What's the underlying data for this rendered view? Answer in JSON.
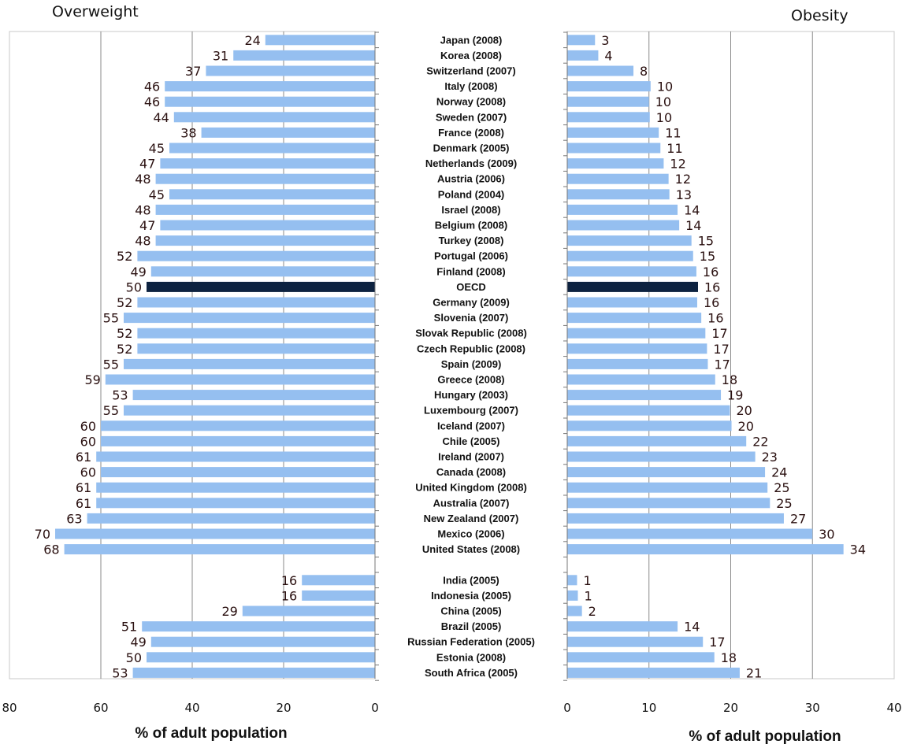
{
  "chart_data": [
    {
      "type": "bar",
      "orientation": "horizontal-reversed",
      "title": "Overweight",
      "xlabel": "% of adult population",
      "xlim": [
        80,
        0
      ],
      "xticks": [
        "80",
        "60",
        "40",
        "20",
        "0"
      ],
      "categories": [
        "Japan (2008)",
        "Korea (2008)",
        "Switzerland (2007)",
        "Italy (2008)",
        "Norway (2008)",
        "Sweden (2007)",
        "France (2008)",
        "Denmark (2005)",
        "Netherlands (2009)",
        "Austria (2006)",
        "Poland (2004)",
        "Israel (2008)",
        "Belgium (2008)",
        "Turkey (2008)",
        "Portugal (2006)",
        "Finland (2008)",
        "OECD",
        "Germany (2009)",
        "Slovenia (2007)",
        "Slovak Republic (2008)",
        "Czech Republic (2008)",
        "Spain (2009)",
        "Greece (2008)",
        "Hungary (2003)",
        "Luxembourg (2007)",
        "Iceland (2007)",
        "Chile (2005)",
        "Ireland (2007)",
        "Canada (2008)",
        "United Kingdom (2008)",
        "Australia (2007)",
        "New Zealand (2007)",
        "Mexico (2006)",
        "United States (2008)",
        "",
        "India (2005)",
        "Indonesia (2005)",
        "China (2005)",
        "Brazil (2005)",
        "Russian Federation (2005)",
        "Estonia (2008)",
        "South Africa (2005)"
      ],
      "values": [
        24,
        31,
        37,
        46,
        46,
        44,
        38,
        45,
        47,
        48,
        45,
        48,
        47,
        48,
        52,
        49,
        50,
        52,
        55,
        52,
        52,
        55,
        59,
        53,
        55,
        60,
        60,
        61,
        60,
        61,
        61,
        63,
        70,
        68,
        null,
        16,
        16,
        29,
        51,
        49,
        50,
        53
      ],
      "labels": [
        "24",
        "31",
        "37",
        "46",
        "46",
        "44",
        "38",
        "45",
        "47",
        "48",
        "45",
        "48",
        "47",
        "48",
        "52",
        "49",
        "50",
        "52",
        "55",
        "52",
        "52",
        "55",
        "59",
        "53",
        "55",
        "60",
        "60",
        "61",
        "60",
        "61",
        "61",
        "63",
        "70",
        "68",
        "",
        "16",
        "16",
        "29",
        "51",
        "49",
        "50",
        "53"
      ],
      "highlight": "OECD",
      "colors": {
        "bar": "#95bff0",
        "highlight": "#0d2240"
      }
    },
    {
      "type": "bar",
      "orientation": "horizontal",
      "title": "Obesity",
      "xlabel": "% of adult population",
      "xlim": [
        0,
        40
      ],
      "xticks": [
        "0",
        "10",
        "20",
        "30",
        "40"
      ],
      "categories": [
        "Japan (2008)",
        "Korea (2008)",
        "Switzerland (2007)",
        "Italy (2008)",
        "Norway (2008)",
        "Sweden (2007)",
        "France (2008)",
        "Denmark (2005)",
        "Netherlands (2009)",
        "Austria (2006)",
        "Poland (2004)",
        "Israel (2008)",
        "Belgium (2008)",
        "Turkey (2008)",
        "Portugal (2006)",
        "Finland (2008)",
        "OECD",
        "Germany (2009)",
        "Slovenia (2007)",
        "Slovak Republic (2008)",
        "Czech Republic (2008)",
        "Spain (2009)",
        "Greece (2008)",
        "Hungary (2003)",
        "Luxembourg (2007)",
        "Iceland (2007)",
        "Chile (2005)",
        "Ireland (2007)",
        "Canada (2008)",
        "United Kingdom (2008)",
        "Australia (2007)",
        "New Zealand (2007)",
        "Mexico (2006)",
        "United States (2008)",
        "",
        "India (2005)",
        "Indonesia (2005)",
        "China (2005)",
        "Brazil (2005)",
        "Russian Federation (2005)",
        "Estonia (2008)",
        "South Africa (2005)"
      ],
      "values": [
        3.4,
        3.8,
        8.1,
        10.2,
        10.0,
        10.1,
        11.2,
        11.4,
        11.8,
        12.4,
        12.5,
        13.5,
        13.7,
        15.2,
        15.4,
        15.8,
        16.0,
        15.9,
        16.4,
        16.9,
        17.1,
        17.2,
        18.1,
        18.8,
        19.9,
        20.1,
        21.9,
        23.0,
        24.2,
        24.5,
        24.8,
        26.5,
        30.0,
        33.8,
        null,
        1.2,
        1.3,
        1.8,
        13.5,
        16.6,
        18.0,
        21.1
      ],
      "labels": [
        "3",
        "4",
        "8",
        "10",
        "10",
        "10",
        "11",
        "11",
        "12",
        "12",
        "13",
        "14",
        "14",
        "15",
        "15",
        "16",
        "16",
        "16",
        "16",
        "17",
        "17",
        "17",
        "18",
        "19",
        "20",
        "20",
        "22",
        "23",
        "24",
        "25",
        "25",
        "27",
        "30",
        "34",
        "",
        "1",
        "1",
        "2",
        "14",
        "17",
        "18",
        "21"
      ],
      "highlight": "OECD",
      "colors": {
        "bar": "#95bff0",
        "highlight": "#0d2240"
      }
    }
  ]
}
